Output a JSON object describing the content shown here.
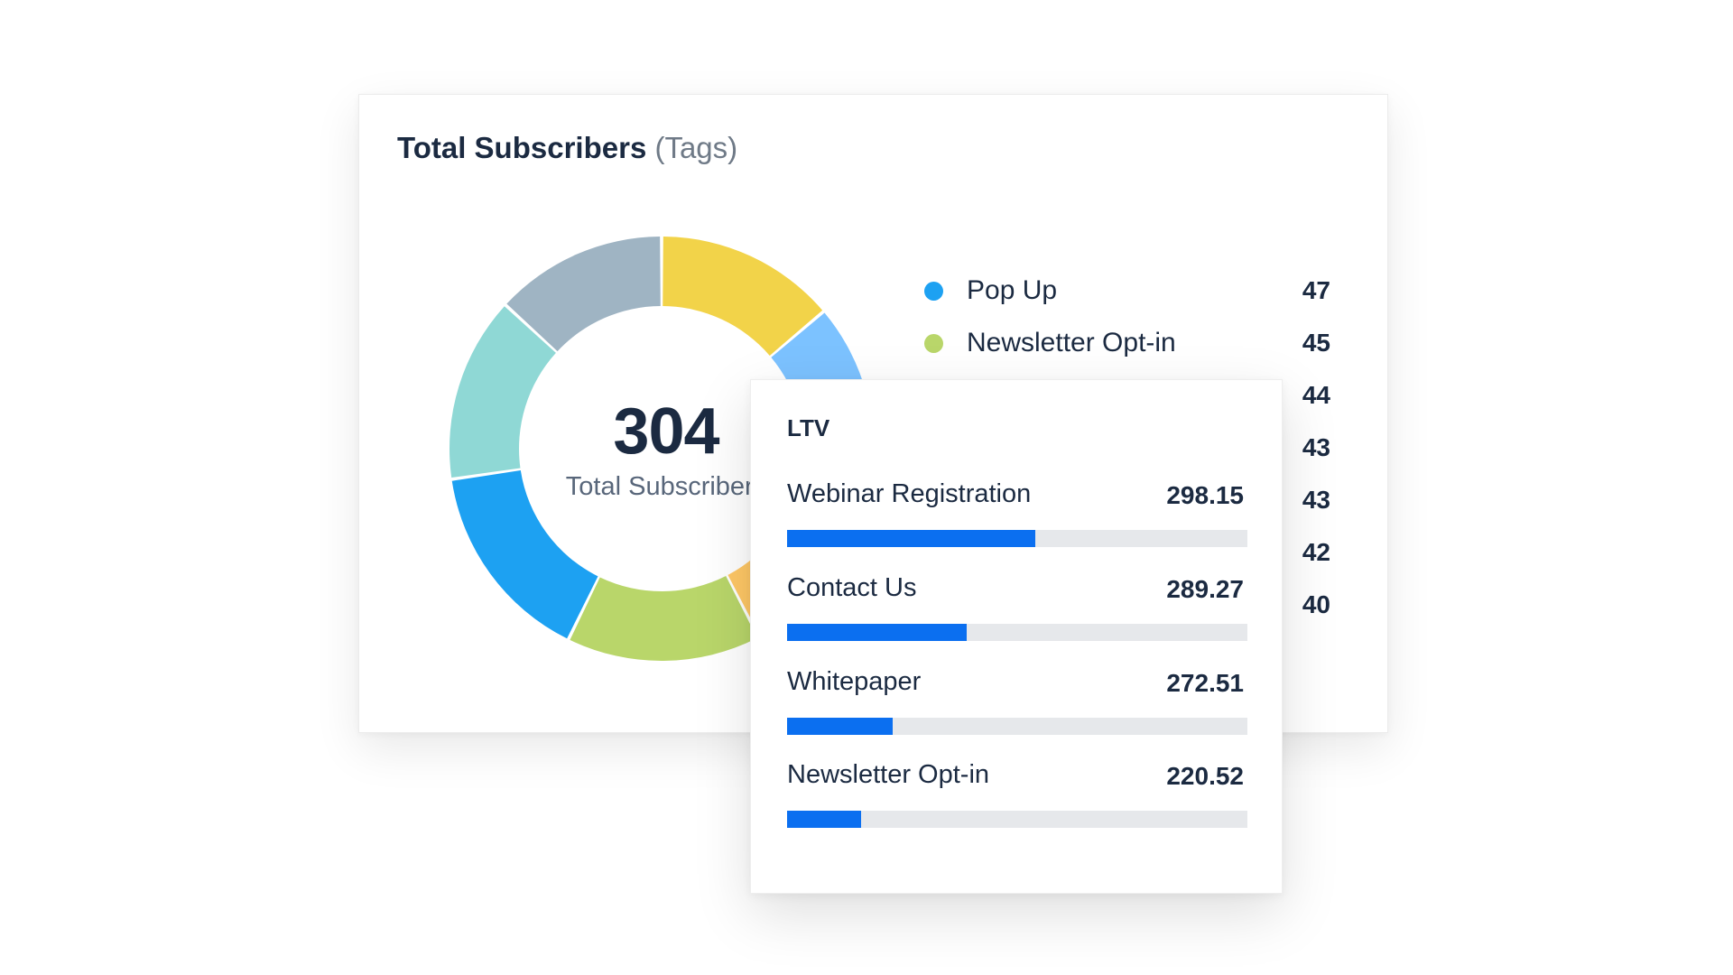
{
  "chart_data": [
    {
      "type": "pie",
      "variant": "donut",
      "title": "Total Subscribers",
      "title_suffix": "(Tags)",
      "center_value": "304",
      "center_label": "Total Subscribers",
      "legend_placement": "right",
      "series": [
        {
          "name": "Pop Up",
          "value": 47,
          "color": "#1da1f2"
        },
        {
          "name": "Newsletter Opt-in",
          "value": 45,
          "color": "#b9d66a"
        },
        {
          "name": "",
          "value": 44,
          "color": "#ffc866"
        },
        {
          "name": "",
          "value": 43,
          "color": "#7cc2ff"
        },
        {
          "name": "",
          "value": 43,
          "color": "#8fd8d5"
        },
        {
          "name": "",
          "value": 42,
          "color": "#f2d349"
        },
        {
          "name": "",
          "value": 40,
          "color": "#9fb4c3"
        }
      ]
    },
    {
      "type": "bar",
      "orientation": "horizontal",
      "title": "LTV",
      "categories": [
        "Webinar Registration",
        "Contact Us",
        "Whitepaper",
        "Newsletter Opt-in"
      ],
      "values": [
        298.15,
        289.27,
        272.51,
        220.52
      ],
      "fill_fraction": [
        0.54,
        0.39,
        0.23,
        0.16
      ],
      "bar_color": "#0b6ff0",
      "track_color": "#e6e8eb"
    }
  ]
}
